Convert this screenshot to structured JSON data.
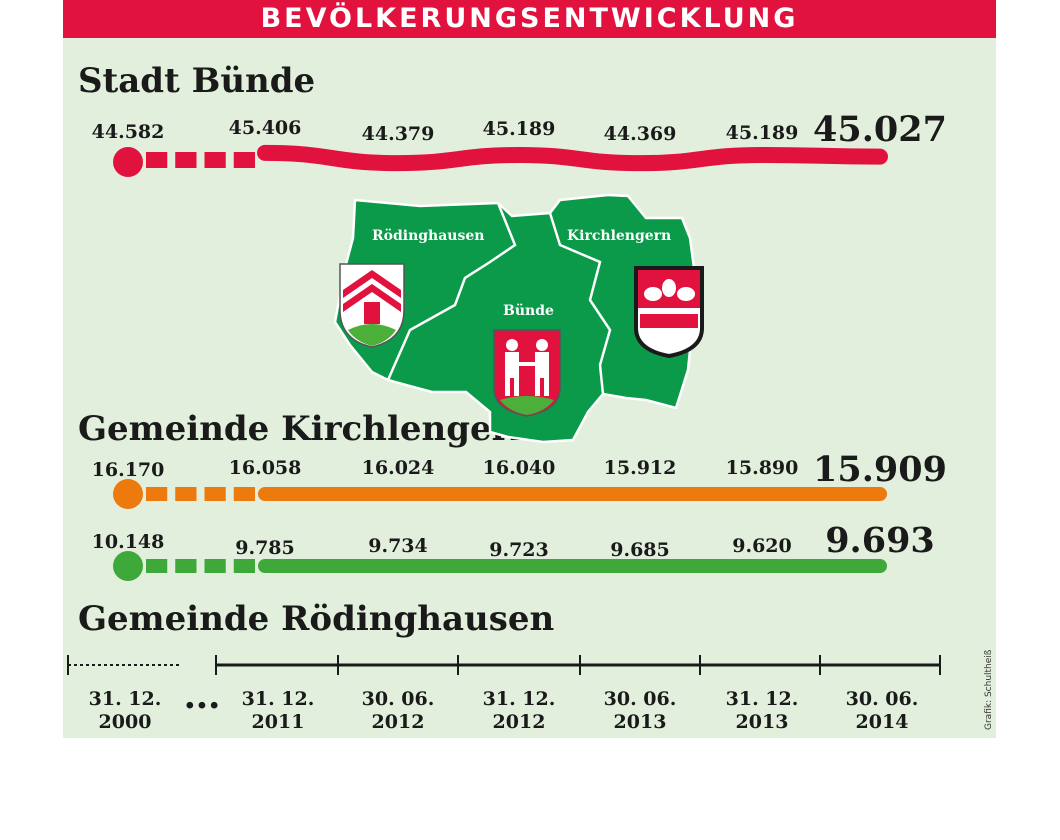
{
  "header": {
    "title": "BEVÖLKERUNGSENTWICKLUNG"
  },
  "credit": "Grafik: Schultheiß",
  "colors": {
    "banner": "#e2123e",
    "background": "#e2efdc",
    "buende": "#e2123e",
    "kirchlengern": "#ec7a0c",
    "roedinghausen": "#3ea83a",
    "map": "#0a9a4a"
  },
  "map": {
    "labels": {
      "roedinghausen": "Rödinghausen",
      "buende": "Bünde",
      "kirchlengern": "Kirchlengern"
    }
  },
  "chart_data": {
    "type": "line",
    "categories": [
      "31. 12. 2000",
      "31. 12. 2011",
      "30. 06. 2012",
      "31. 12. 2012",
      "30. 06. 2013",
      "31. 12. 2013",
      "30. 06. 2014"
    ],
    "category_lines": [
      [
        "31. 12.",
        "2000"
      ],
      [
        "31. 12.",
        "2011"
      ],
      [
        "30. 06.",
        "2012"
      ],
      [
        "31. 12.",
        "2012"
      ],
      [
        "30. 06.",
        "2013"
      ],
      [
        "31. 12.",
        "2013"
      ],
      [
        "30. 06.",
        "2014"
      ]
    ],
    "gap_marker": "•••",
    "series": [
      {
        "name": "Stadt Bünde",
        "labels": [
          "44.582",
          "45.406",
          "44.379",
          "45.189",
          "44.369",
          "45.189",
          "45.027"
        ],
        "values": [
          44582,
          45406,
          44379,
          45189,
          44369,
          45189,
          45027
        ]
      },
      {
        "name": "Gemeinde Kirchlengern",
        "labels": [
          "16.170",
          "16.058",
          "16.024",
          "16.040",
          "15.912",
          "15.890",
          "15.909"
        ],
        "values": [
          16170,
          16058,
          16024,
          16040,
          15912,
          15890,
          15909
        ]
      },
      {
        "name": "Gemeinde Rödinghausen",
        "labels": [
          "10.148",
          "9.785",
          "9.734",
          "9.723",
          "9.685",
          "9.620",
          "9.693"
        ],
        "values": [
          10148,
          9785,
          9734,
          9723,
          9685,
          9620,
          9693
        ]
      }
    ]
  }
}
